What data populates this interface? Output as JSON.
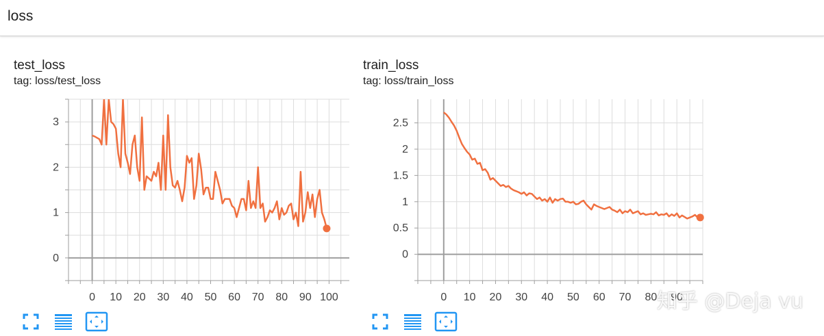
{
  "header": {
    "search_text": "loss"
  },
  "cards": [
    {
      "title": "test_loss",
      "tag": "tag: loss/test_loss"
    },
    {
      "title": "train_loss",
      "tag": "tag: loss/train_loss"
    }
  ],
  "watermark": "知乎 @Deja vu",
  "colors": {
    "series": "#f07040",
    "grid": "#dcdcdc",
    "axis": "#9e9e9e",
    "tool": "#2196f3"
  },
  "chart_data": [
    {
      "type": "line",
      "title": "test_loss",
      "xlim": [
        -10,
        110
      ],
      "ylim": [
        -0.5,
        3.5
      ],
      "xticks": [
        0,
        10,
        20,
        30,
        40,
        50,
        60,
        70,
        80,
        90,
        100
      ],
      "yticks": [
        0,
        1,
        2,
        3
      ],
      "grid": true,
      "series": [
        {
          "x": [
            0,
            1,
            2,
            3,
            4,
            5,
            6,
            7,
            8,
            9,
            10,
            11,
            12,
            13,
            14,
            15,
            16,
            17,
            18,
            19,
            20,
            21,
            22,
            23,
            24,
            25,
            26,
            27,
            28,
            29,
            30,
            31,
            32,
            33,
            34,
            35,
            36,
            37,
            38,
            39,
            40,
            41,
            42,
            43,
            44,
            45,
            46,
            47,
            48,
            49,
            50,
            51,
            52,
            53,
            54,
            55,
            56,
            57,
            58,
            59,
            60,
            61,
            62,
            63,
            64,
            65,
            66,
            67,
            68,
            69,
            70,
            71,
            72,
            73,
            74,
            75,
            76,
            77,
            78,
            79,
            80,
            81,
            82,
            83,
            84,
            85,
            86,
            87,
            88,
            89,
            90,
            91,
            92,
            93,
            94,
            95,
            96,
            97,
            98,
            99
          ],
          "y": [
            2.7,
            2.68,
            2.65,
            2.62,
            2.5,
            3.5,
            2.5,
            3.5,
            3.0,
            2.95,
            2.85,
            2.3,
            2.0,
            3.5,
            2.3,
            2.1,
            1.85,
            2.5,
            2.7,
            2.0,
            1.7,
            3.1,
            1.5,
            1.8,
            1.75,
            1.7,
            1.9,
            1.8,
            2.1,
            1.5,
            2.7,
            1.5,
            3.15,
            2.0,
            1.6,
            1.55,
            1.7,
            1.5,
            1.25,
            1.55,
            2.25,
            2.1,
            2.2,
            1.3,
            1.6,
            2.3,
            1.95,
            1.4,
            1.55,
            1.55,
            1.3,
            1.3,
            1.9,
            1.7,
            1.5,
            1.2,
            1.3,
            1.3,
            1.3,
            1.15,
            1.1,
            0.9,
            1.1,
            1.3,
            1.3,
            1.05,
            1.7,
            1.1,
            1.25,
            1.1,
            2.0,
            1.1,
            1.2,
            0.8,
            0.9,
            1.05,
            1.0,
            1.1,
            1.25,
            0.85,
            1.1,
            0.95,
            1.0,
            1.15,
            1.2,
            0.85,
            1.0,
            0.7,
            1.9,
            0.8,
            1.0,
            1.45,
            1.1,
            1.4,
            0.9,
            1.3,
            1.5,
            1.0,
            0.85,
            0.65
          ]
        }
      ]
    },
    {
      "type": "line",
      "title": "train_loss",
      "xlim": [
        -10,
        100
      ],
      "ylim": [
        -0.5,
        2.95
      ],
      "xticks": [
        0,
        10,
        20,
        30,
        40,
        50,
        60,
        70,
        80,
        90
      ],
      "yticks": [
        0,
        0.5,
        1,
        1.5,
        2,
        2.5
      ],
      "grid": true,
      "series": [
        {
          "x": [
            0,
            1,
            2,
            3,
            4,
            5,
            6,
            7,
            8,
            9,
            10,
            11,
            12,
            13,
            14,
            15,
            16,
            17,
            18,
            19,
            20,
            21,
            22,
            23,
            24,
            25,
            26,
            27,
            28,
            29,
            30,
            31,
            32,
            33,
            34,
            35,
            36,
            37,
            38,
            39,
            40,
            41,
            42,
            43,
            44,
            45,
            46,
            47,
            48,
            49,
            50,
            51,
            52,
            53,
            54,
            55,
            56,
            57,
            58,
            59,
            60,
            61,
            62,
            63,
            64,
            65,
            66,
            67,
            68,
            69,
            70,
            71,
            72,
            73,
            74,
            75,
            76,
            77,
            78,
            79,
            80,
            81,
            82,
            83,
            84,
            85,
            86,
            87,
            88,
            89,
            90,
            91,
            92,
            93,
            94,
            95,
            96,
            97,
            98,
            99
          ],
          "y": [
            2.7,
            2.66,
            2.6,
            2.52,
            2.45,
            2.35,
            2.22,
            2.1,
            2.02,
            1.95,
            1.9,
            1.8,
            1.82,
            1.72,
            1.74,
            1.6,
            1.62,
            1.55,
            1.42,
            1.45,
            1.4,
            1.35,
            1.3,
            1.32,
            1.28,
            1.3,
            1.25,
            1.22,
            1.2,
            1.18,
            1.15,
            1.18,
            1.12,
            1.16,
            1.15,
            1.1,
            1.05,
            1.08,
            1.02,
            1.05,
            1.0,
            1.08,
            0.98,
            1.05,
            1.02,
            1.05,
            1.06,
            1.0,
            1.0,
            0.98,
            1.0,
            0.95,
            0.96,
            1.0,
            1.02,
            0.95,
            0.9,
            0.85,
            0.95,
            0.92,
            0.9,
            0.88,
            0.86,
            0.88,
            0.9,
            0.85,
            0.83,
            0.8,
            0.85,
            0.78,
            0.82,
            0.8,
            0.85,
            0.78,
            0.8,
            0.82,
            0.76,
            0.78,
            0.75,
            0.76,
            0.77,
            0.76,
            0.8,
            0.74,
            0.76,
            0.75,
            0.78,
            0.72,
            0.76,
            0.73,
            0.78,
            0.7,
            0.74,
            0.71,
            0.68,
            0.7,
            0.72,
            0.75,
            0.7,
            0.7
          ]
        }
      ]
    }
  ]
}
